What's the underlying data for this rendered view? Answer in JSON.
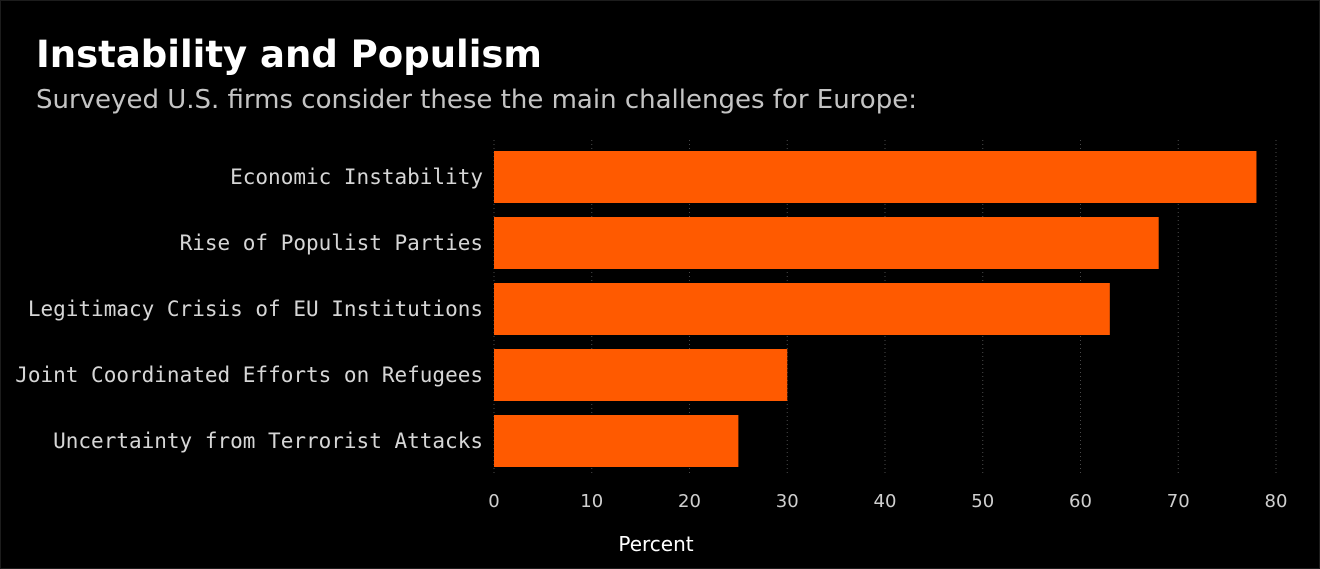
{
  "chart_data": {
    "type": "bar",
    "orientation": "horizontal",
    "title": "Instability and Populism",
    "subtitle": "Surveyed U.S. firms consider these the main challenges for Europe:",
    "categories": [
      "Economic Instability",
      "Rise of Populist Parties",
      "Legitimacy Crisis of EU Institutions",
      "Joint Coordinated Efforts on Refugees",
      "Uncertainty from Terrorist Attacks"
    ],
    "values": [
      78,
      68,
      63,
      30,
      25
    ],
    "xlabel": "Percent",
    "ylabel": "",
    "xlim": [
      0,
      80
    ],
    "xticks": [
      "0",
      "10",
      "20",
      "30",
      "40",
      "50",
      "60",
      "70",
      "80"
    ],
    "grid": "vertical dotted",
    "bar_color": "#ff5a00",
    "background_color": "#000000"
  }
}
